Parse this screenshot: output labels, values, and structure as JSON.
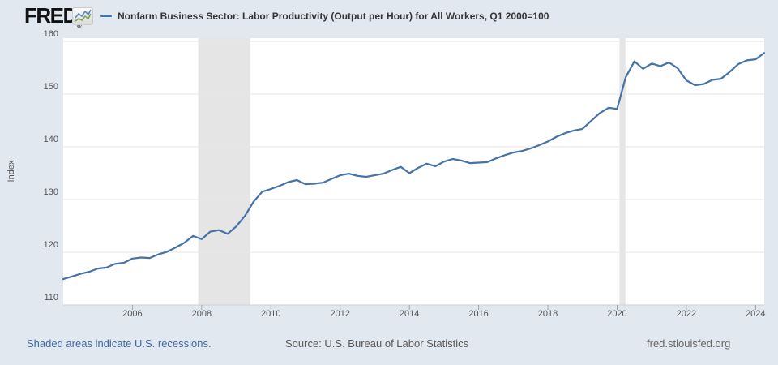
{
  "header": {
    "logo_text": "FRED",
    "registered_mark": "®",
    "legend_label": "Nonfarm Business Sector: Labor Productivity (Output per Hour) for All Workers, Q1 2000=100"
  },
  "footer": {
    "recession_note": "Shaded areas indicate U.S. recessions.",
    "source": "Source: U.S. Bureau of Labor Statistics",
    "site": "fred.stlouisfed.org"
  },
  "colors": {
    "background": "#e2e8f0",
    "plot_background": "#ffffff",
    "line": "#4572a7",
    "gridline": "#e6e6e6",
    "axis_line": "#ccd0d6",
    "tick": "#9aa5b1",
    "recession_band": "#e5e5e5",
    "link_blue": "#4169a5"
  },
  "chart_data": {
    "type": "line",
    "title": "Nonfarm Business Sector: Labor Productivity (Output per Hour) for All Workers, Q1 2000=100",
    "ylabel": "Index",
    "xlabel": "",
    "legend_position": "top",
    "grid": "horizontal",
    "frequency": "quarterly",
    "x_start": 2004.0,
    "x_step": 0.25,
    "xlim": [
      2004.0,
      2024.25
    ],
    "ylim": [
      110,
      160
    ],
    "x_ticks": [
      2006,
      2008,
      2010,
      2012,
      2014,
      2016,
      2018,
      2020,
      2022,
      2024
    ],
    "y_ticks": [
      110,
      120,
      130,
      140,
      150,
      160
    ],
    "recession_bands": [
      [
        2007.9,
        2009.4
      ],
      [
        2020.07,
        2020.24
      ]
    ],
    "series": [
      {
        "name": "Nonfarm Business Sector: Labor Productivity (Output per Hour) for All Workers, Q1 2000=100",
        "color": "#4572a7",
        "values": [
          114.9,
          115.4,
          115.9,
          116.3,
          116.9,
          117.1,
          117.8,
          118.0,
          118.8,
          119.0,
          118.9,
          119.6,
          120.1,
          120.9,
          121.8,
          123.1,
          122.5,
          123.9,
          124.2,
          123.5,
          124.9,
          126.9,
          129.6,
          131.5,
          132.0,
          132.6,
          133.3,
          133.7,
          132.9,
          133.0,
          133.2,
          133.9,
          134.6,
          134.9,
          134.5,
          134.3,
          134.6,
          134.9,
          135.6,
          136.2,
          135.0,
          136.0,
          136.8,
          136.3,
          137.2,
          137.7,
          137.4,
          136.9,
          137.0,
          137.1,
          137.8,
          138.4,
          138.9,
          139.2,
          139.7,
          140.3,
          141.0,
          141.9,
          142.6,
          143.1,
          143.4,
          144.9,
          146.4,
          147.4,
          147.2,
          153.2,
          156.2,
          154.8,
          155.8,
          155.3,
          156.0,
          154.9,
          152.6,
          151.7,
          151.9,
          152.7,
          152.9,
          154.2,
          155.7,
          156.4,
          156.6,
          157.8
        ]
      }
    ]
  }
}
